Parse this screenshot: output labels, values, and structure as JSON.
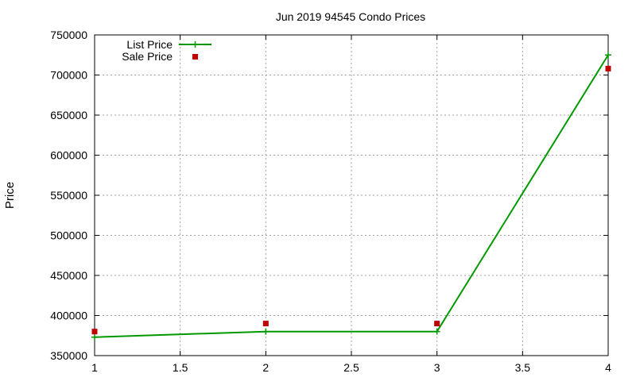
{
  "chart_data": {
    "type": "line",
    "title": "Jun 2019 94545 Condo Prices",
    "xlabel": "",
    "ylabel": "Price",
    "xlim": [
      1,
      4
    ],
    "ylim": [
      350000,
      750000
    ],
    "xticks": [
      1,
      1.5,
      2,
      2.5,
      3,
      3.5,
      4
    ],
    "xtick_labels": [
      "1",
      "1.5",
      "2",
      "2.5",
      "3",
      "3.5",
      "4"
    ],
    "yticks": [
      350000,
      400000,
      450000,
      500000,
      550000,
      600000,
      650000,
      700000,
      750000
    ],
    "ytick_labels": [
      "350000",
      "400000",
      "450000",
      "500000",
      "550000",
      "600000",
      "650000",
      "700000",
      "750000"
    ],
    "grid": true,
    "legend_position": "top-left",
    "series": [
      {
        "name": "List Price",
        "style": "lines+points",
        "marker": "plus",
        "color": "#009900",
        "x": [
          1,
          2,
          3,
          4
        ],
        "y": [
          373000,
          380000,
          380000,
          725000
        ]
      },
      {
        "name": "Sale Price",
        "style": "points",
        "marker": "square",
        "color": "#c00000",
        "x": [
          1,
          2,
          3,
          4
        ],
        "y": [
          380000,
          390000,
          390000,
          708000
        ]
      }
    ]
  }
}
